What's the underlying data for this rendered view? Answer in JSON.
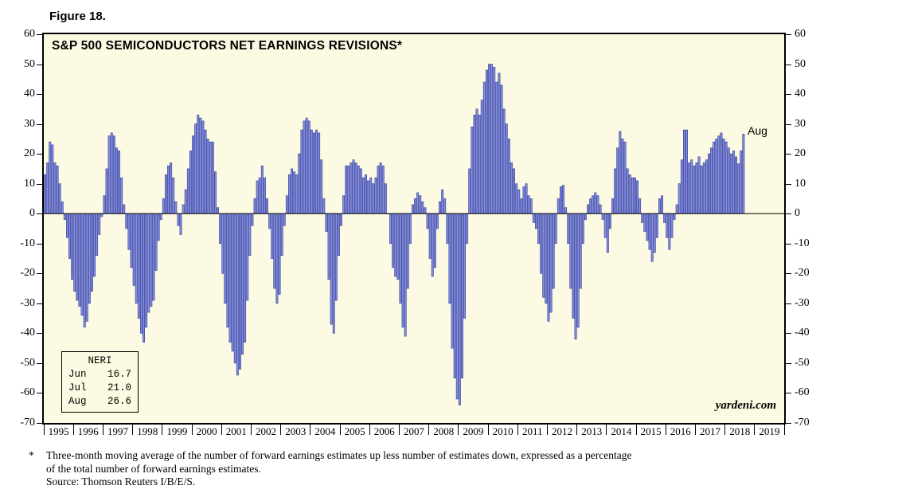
{
  "figure_label": "Figure 18.",
  "chart_data": {
    "type": "bar",
    "title": "S&P 500 SEMICONDUCTORS NET EARNINGS REVISIONS*",
    "xlabel": "",
    "ylabel": "",
    "ylim": [
      -70,
      60
    ],
    "yticks": [
      60,
      50,
      40,
      30,
      20,
      10,
      0,
      -10,
      -20,
      -30,
      -40,
      -50,
      -60,
      -70
    ],
    "grid": false,
    "plot_bg": "#fcfae2",
    "bar_color": "#8590d9",
    "bar_edge_color": "#2c35a0",
    "start_year": 1995,
    "year_labels": [
      "1995",
      "1996",
      "1997",
      "1998",
      "1999",
      "2000",
      "2001",
      "2002",
      "2003",
      "2004",
      "2005",
      "2006",
      "2007",
      "2008",
      "2009",
      "2010",
      "2011",
      "2012",
      "2013",
      "2014",
      "2015",
      "2016",
      "2017",
      "2018",
      "2019"
    ],
    "values_by_year": {
      "1995": [
        13,
        17,
        24,
        23,
        17,
        16,
        10,
        4,
        -2,
        -8,
        -15,
        -22
      ],
      "1996": [
        -26,
        -29,
        -31,
        -34,
        -38,
        -36,
        -30,
        -26,
        -21,
        -14,
        -7,
        -1
      ],
      "1997": [
        6,
        15,
        26,
        27,
        26,
        22,
        21,
        12,
        3,
        -5,
        -12,
        -18
      ],
      "1998": [
        -24,
        -30,
        -35,
        -40,
        -43,
        -38,
        -33,
        -31,
        -29,
        -19,
        -9,
        -2
      ],
      "1999": [
        5,
        13,
        16,
        17,
        12,
        4,
        -4,
        -7,
        3,
        8,
        15,
        21
      ],
      "2000": [
        26,
        30,
        33,
        32,
        31,
        28,
        25,
        24,
        24,
        14,
        2,
        -10
      ],
      "2001": [
        -20,
        -30,
        -38,
        -43,
        -46,
        -50,
        -54,
        -52,
        -47,
        -43,
        -29,
        -14
      ],
      "2002": [
        -4,
        5,
        11,
        12,
        16,
        12,
        5,
        -5,
        -15,
        -25,
        -30,
        -27
      ],
      "2003": [
        -14,
        -4,
        6,
        13,
        15,
        14,
        13,
        20,
        28,
        31,
        32,
        31
      ],
      "2004": [
        28,
        27,
        28,
        27,
        18,
        5,
        -6,
        -22,
        -37,
        -40,
        -29,
        -14
      ],
      "2005": [
        -4,
        6,
        16,
        16,
        17,
        18,
        17,
        16,
        15,
        12,
        13,
        11
      ],
      "2006": [
        12,
        10,
        12,
        16,
        17,
        16,
        10,
        0,
        -10,
        -18,
        -21,
        -22
      ],
      "2007": [
        -30,
        -38,
        -41,
        -25,
        -10,
        3,
        5,
        7,
        6,
        4,
        2,
        -5
      ],
      "2008": [
        -15,
        -21,
        -18,
        -5,
        4,
        8,
        5,
        -10,
        -30,
        -45,
        -55,
        -62
      ],
      "2009": [
        -64,
        -55,
        -35,
        -10,
        15,
        29,
        33,
        35,
        33,
        38,
        44,
        48
      ],
      "2010": [
        50,
        50,
        49,
        44,
        47,
        43,
        35,
        30,
        25,
        17,
        15,
        10
      ],
      "2011": [
        8,
        5,
        9,
        10,
        6,
        5,
        -3,
        -5,
        -10,
        -20,
        -28,
        -30
      ],
      "2012": [
        -36,
        -33,
        -25,
        -10,
        5,
        9,
        9.5,
        2,
        -10,
        -25,
        -35,
        -42
      ],
      "2013": [
        -38,
        -25,
        -10,
        -2,
        3,
        5,
        6,
        7,
        6,
        3,
        -2,
        -8
      ],
      "2014": [
        -13,
        -5,
        5,
        15,
        22,
        27.5,
        25,
        24,
        15,
        13,
        12,
        12
      ],
      "2015": [
        11,
        5,
        -3,
        -6,
        -9,
        -12,
        -16,
        -13,
        -8,
        5,
        6,
        -3
      ],
      "2016": [
        -8,
        -12,
        -8,
        -2,
        3,
        10,
        18,
        28,
        28,
        17,
        18,
        16
      ],
      "2017": [
        17,
        19,
        16,
        17,
        18,
        20,
        22,
        24,
        25,
        26,
        27,
        25
      ],
      "2018": [
        24,
        22,
        20,
        21,
        19,
        16.7,
        21.0,
        26.6
      ]
    },
    "annotation": "Aug",
    "legend": {
      "title": "NERI",
      "rows": [
        {
          "label": "Jun",
          "value": "16.7"
        },
        {
          "label": "Jul",
          "value": "21.0"
        },
        {
          "label": "Aug",
          "value": "26.6"
        }
      ]
    },
    "watermark": "yardeni.com"
  },
  "footnote": {
    "marker": "*",
    "line1": "Three-month moving average of the number of forward earnings estimates up less number of estimates down, expressed as a percentage",
    "line2": "of the total number of forward earnings estimates.",
    "source": "Source: Thomson Reuters I/B/E/S."
  }
}
